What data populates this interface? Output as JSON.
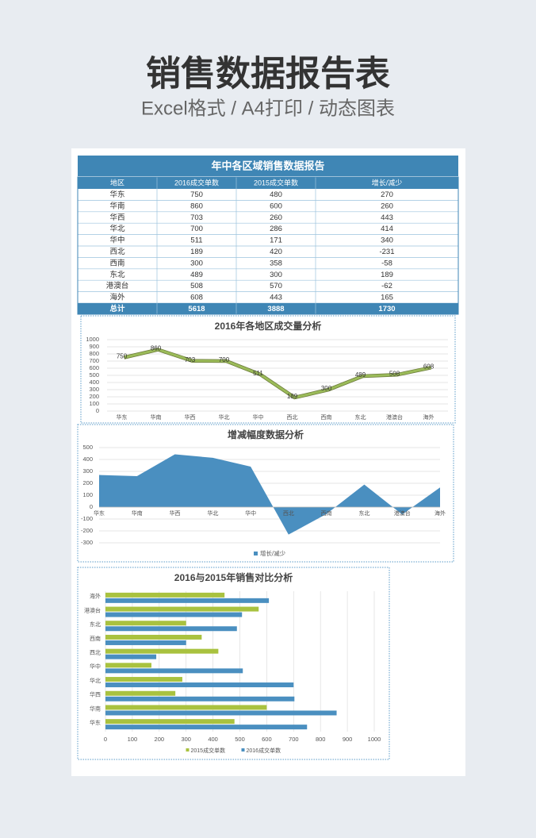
{
  "header": {
    "title": "销售数据报告表",
    "subtitle": "Excel格式 / A4打印 / 动态图表"
  },
  "table": {
    "title": "年中各区域销售数据报告",
    "columns": [
      "地区",
      "2016成交单数",
      "2015成交单数",
      "增长/减少"
    ],
    "rows": [
      [
        "华东",
        750,
        480,
        270
      ],
      [
        "华南",
        860,
        600,
        260
      ],
      [
        "华西",
        703,
        260,
        443
      ],
      [
        "华北",
        700,
        286,
        414
      ],
      [
        "华中",
        511,
        171,
        340
      ],
      [
        "西北",
        189,
        420,
        -231
      ],
      [
        "西南",
        300,
        358,
        -58
      ],
      [
        "东北",
        489,
        300,
        189
      ],
      [
        "港澳台",
        508,
        570,
        -62
      ],
      [
        "海外",
        608,
        443,
        165
      ]
    ],
    "total": [
      "总计",
      5618,
      3888,
      1730
    ]
  },
  "chart_data": [
    {
      "type": "line",
      "title": "2016年各地区成交量分析",
      "categories": [
        "华东",
        "华南",
        "华西",
        "华北",
        "华中",
        "西北",
        "西南",
        "东北",
        "港澳台",
        "海外"
      ],
      "values": [
        750,
        860,
        703,
        700,
        511,
        189,
        300,
        489,
        508,
        608
      ],
      "color": "#9bbb59",
      "ylim": [
        0,
        1000
      ],
      "yticks": [
        0,
        100,
        200,
        300,
        400,
        500,
        600,
        700,
        800,
        900,
        1000
      ],
      "grid": true
    },
    {
      "type": "area",
      "title": "增减幅度数据分析",
      "categories": [
        "华东",
        "华南",
        "华西",
        "华北",
        "华中",
        "西北",
        "西南",
        "东北",
        "港澳台",
        "海外"
      ],
      "series": [
        {
          "name": "增长/减少",
          "color": "#4a8fc0",
          "values": [
            270,
            260,
            443,
            414,
            340,
            -231,
            -58,
            189,
            -62,
            165
          ]
        }
      ],
      "ylim": [
        -300,
        500
      ],
      "yticks": [
        -300,
        -200,
        -100,
        0,
        100,
        200,
        300,
        400,
        500
      ],
      "grid": true,
      "legend": "bottom"
    },
    {
      "type": "bar",
      "orientation": "horizontal",
      "title": "2016与2015年销售对比分析",
      "categories": [
        "华东",
        "华南",
        "华西",
        "华北",
        "华中",
        "西北",
        "西南",
        "东北",
        "港澳台",
        "海外"
      ],
      "series": [
        {
          "name": "2015成交单数",
          "color": "#a9c23f",
          "values": [
            480,
            600,
            260,
            286,
            171,
            420,
            358,
            300,
            570,
            443
          ]
        },
        {
          "name": "2016成交单数",
          "color": "#4a8fc0",
          "values": [
            750,
            860,
            703,
            700,
            511,
            189,
            300,
            489,
            508,
            608
          ]
        }
      ],
      "xlim": [
        0,
        1000
      ],
      "xticks": [
        0,
        100,
        200,
        300,
        400,
        500,
        600,
        700,
        800,
        900,
        1000
      ],
      "grid": true,
      "legend": "bottom"
    }
  ]
}
